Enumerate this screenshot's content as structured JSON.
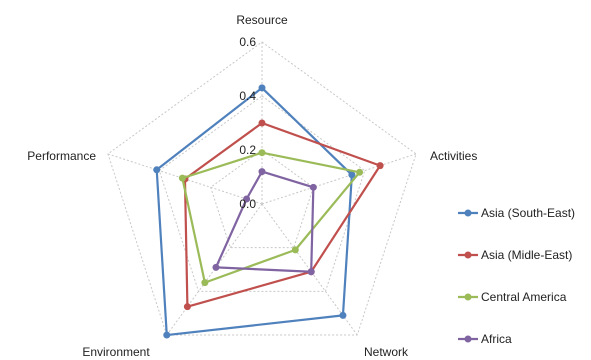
{
  "chart_data": {
    "type": "radar",
    "axes": [
      "Resource",
      "Activities",
      "Network",
      "Environment",
      "Performance"
    ],
    "ticks": [
      "0.0",
      "0.2",
      "0.4",
      "0.6"
    ],
    "range": [
      0,
      0.6
    ],
    "grid": true,
    "legend_position": "right",
    "series": [
      {
        "name": "Asia (South-East)",
        "color": "#4f81bd",
        "values": [
          0.43,
          0.35,
          0.51,
          0.6,
          0.41
        ]
      },
      {
        "name": "Asia (Midle-East)",
        "color": "#c0504d",
        "values": [
          0.3,
          0.46,
          0.31,
          0.47,
          0.3
        ]
      },
      {
        "name": "Central America",
        "color": "#9bbb59",
        "values": [
          0.19,
          0.38,
          0.21,
          0.36,
          0.31
        ]
      },
      {
        "name": "Africa",
        "color": "#8064a2",
        "values": [
          0.12,
          0.2,
          0.31,
          0.29,
          0.06
        ]
      }
    ]
  }
}
